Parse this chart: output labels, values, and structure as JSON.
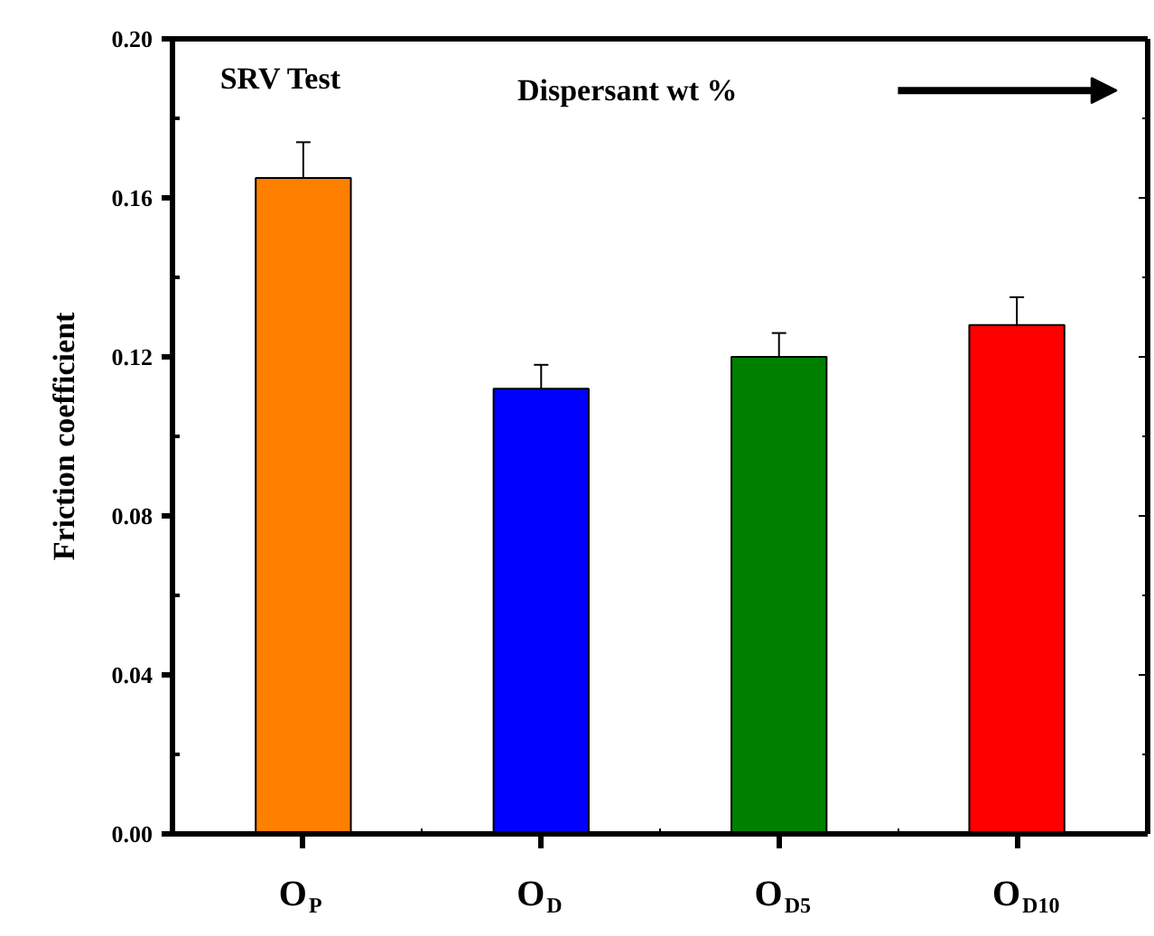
{
  "chart_data": {
    "type": "bar",
    "ylabel": "Friction coefficient",
    "categories": [
      "O$_{P}$",
      "O$_{D}$",
      "O$_{D5}$",
      "O$_{D10}$"
    ],
    "values": [
      0.165,
      0.112,
      0.12,
      0.128
    ],
    "errors": [
      0.009,
      0.006,
      0.006,
      0.007
    ],
    "colors": [
      "#ff8000",
      "#0000ff",
      "#008000",
      "#ff0000"
    ],
    "ylim": [
      0,
      0.2
    ],
    "yticks": [
      {
        "value": 0,
        "label": "0.00"
      },
      {
        "value": 0.04,
        "label": "0.04"
      },
      {
        "value": 0.08,
        "label": "0.08"
      },
      {
        "value": 0.12,
        "label": "0.12"
      },
      {
        "value": 0.16,
        "label": "0.16"
      },
      {
        "value": 0.2,
        "label": "0.20"
      }
    ],
    "annotations": [
      "SRV Test",
      "Dispersant wt %"
    ],
    "grid": false,
    "legend": false
  }
}
